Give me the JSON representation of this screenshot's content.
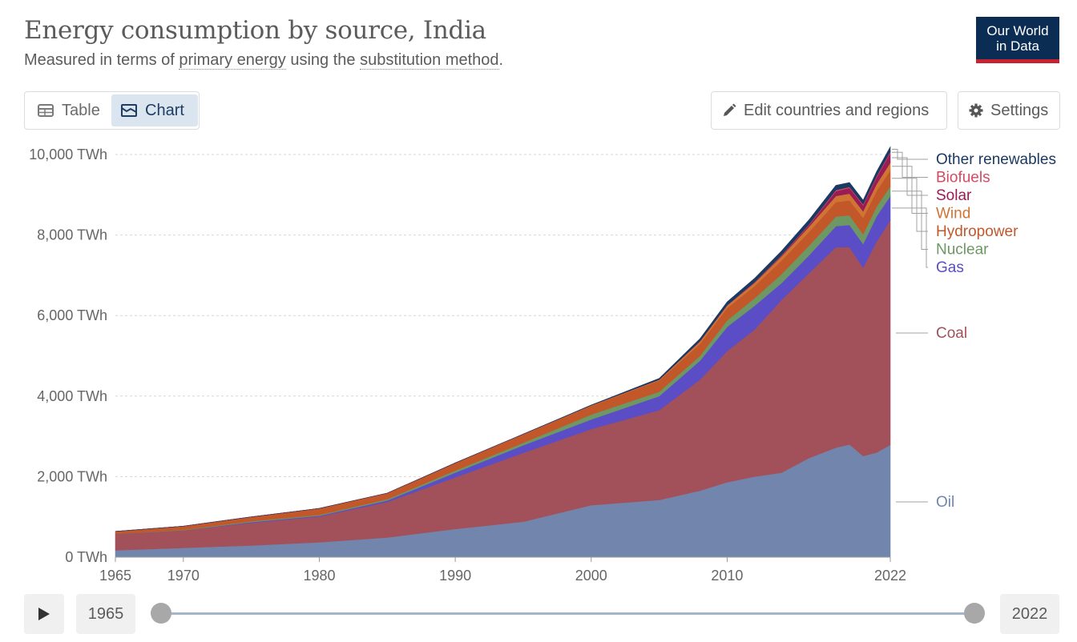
{
  "header": {
    "title": "Energy consumption by source, India",
    "subtitle_pre": "Measured in terms of ",
    "subtitle_link1": "primary energy",
    "subtitle_mid": " using the ",
    "subtitle_link2": "substitution method",
    "subtitle_post": ".",
    "logo_line1": "Our World",
    "logo_line2": "in Data"
  },
  "tabs": {
    "table_label": "Table",
    "chart_label": "Chart"
  },
  "toolbar": {
    "edit_label": "Edit countries and regions",
    "settings_label": "Settings"
  },
  "timeline": {
    "start_year": "1965",
    "end_year": "2022"
  },
  "colors": {
    "Oil": "#7286ad",
    "Coal": "#a2515b",
    "Gas": "#5b4dc6",
    "Nuclear": "#6d9864",
    "Hydropower": "#c2582a",
    "Wind": "#d07434",
    "Solar": "#9a1c55",
    "Biofuels": "#d34a63",
    "Other renewables": "#1b3a63"
  },
  "chart_data": {
    "type": "area",
    "stacked": true,
    "title": "Energy consumption by source, India",
    "ylabel": "",
    "xlabel": "",
    "unit": "TWh",
    "ylim": [
      0,
      10000
    ],
    "yticks": [
      0,
      2000,
      4000,
      6000,
      8000,
      10000
    ],
    "ytick_labels": [
      "0 TWh",
      "2,000 TWh",
      "4,000 TWh",
      "6,000 TWh",
      "8,000 TWh",
      "10,000 TWh"
    ],
    "xlim": [
      1965,
      2022
    ],
    "xticks": [
      1965,
      1970,
      1980,
      1990,
      2000,
      2010,
      2022
    ],
    "grid": true,
    "legend_position": "right, at series end",
    "x": [
      1965,
      1970,
      1975,
      1980,
      1985,
      1990,
      1995,
      2000,
      2005,
      2008,
      2010,
      2012,
      2014,
      2016,
      2018,
      2019,
      2020,
      2021,
      2022
    ],
    "series": [
      {
        "name": "Oil",
        "values": [
          170,
          230,
          290,
          370,
          490,
          700,
          880,
          1290,
          1420,
          1650,
          1860,
          2000,
          2100,
          2460,
          2720,
          2800,
          2510,
          2600,
          2790
        ]
      },
      {
        "name": "Coal",
        "values": [
          410,
          440,
          560,
          640,
          880,
          1280,
          1710,
          1890,
          2230,
          2760,
          3260,
          3650,
          4290,
          4590,
          4980,
          4900,
          4680,
          5240,
          5580
        ]
      },
      {
        "name": "Gas",
        "values": [
          0,
          0,
          20,
          20,
          40,
          120,
          190,
          240,
          350,
          470,
          600,
          590,
          420,
          440,
          520,
          550,
          590,
          630,
          600
        ]
      },
      {
        "name": "Nuclear",
        "values": [
          0,
          10,
          20,
          20,
          30,
          50,
          60,
          120,
          110,
          120,
          160,
          190,
          220,
          240,
          240,
          240,
          240,
          240,
          240
        ]
      },
      {
        "name": "Hydropower",
        "values": [
          60,
          90,
          110,
          160,
          150,
          190,
          210,
          220,
          280,
          300,
          310,
          300,
          340,
          340,
          360,
          370,
          410,
          390,
          400
        ]
      },
      {
        "name": "Wind",
        "values": [
          0,
          0,
          0,
          0,
          0,
          0,
          5,
          10,
          20,
          60,
          60,
          80,
          100,
          130,
          150,
          170,
          160,
          170,
          190
        ]
      },
      {
        "name": "Solar",
        "values": [
          0,
          0,
          0,
          0,
          0,
          0,
          0,
          0,
          0,
          0,
          0,
          10,
          20,
          40,
          120,
          140,
          150,
          170,
          240
        ]
      },
      {
        "name": "Biofuels",
        "values": [
          0,
          0,
          0,
          0,
          0,
          0,
          0,
          0,
          0,
          5,
          10,
          10,
          15,
          20,
          25,
          25,
          25,
          30,
          30
        ]
      },
      {
        "name": "Other renewables",
        "values": [
          0,
          0,
          0,
          0,
          0,
          0,
          0,
          10,
          30,
          60,
          80,
          90,
          100,
          110,
          120,
          110,
          100,
          110,
          120
        ]
      }
    ]
  }
}
